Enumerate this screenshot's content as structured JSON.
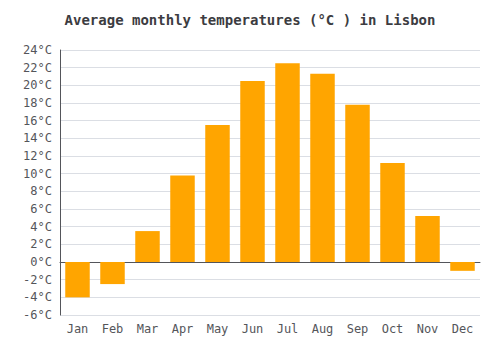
{
  "chart_data": {
    "type": "bar",
    "title": "Average monthly temperatures (°C ) in Lisbon",
    "categories": [
      "Jan",
      "Feb",
      "Mar",
      "Apr",
      "May",
      "Jun",
      "Jul",
      "Aug",
      "Sep",
      "Oct",
      "Nov",
      "Dec"
    ],
    "values": [
      -4.0,
      -2.5,
      3.5,
      9.8,
      15.5,
      20.5,
      22.5,
      21.3,
      17.8,
      11.2,
      5.2,
      -1.0
    ],
    "color": "#FFA500",
    "ylim": [
      -6,
      24
    ],
    "yticks": [
      {
        "value": -6,
        "label": "-6°C"
      },
      {
        "value": -4,
        "label": "-4°C"
      },
      {
        "value": -2,
        "label": "-2°C"
      },
      {
        "value": 0,
        "label": "0°C"
      },
      {
        "value": 2,
        "label": "2°C"
      },
      {
        "value": 4,
        "label": "4°C"
      },
      {
        "value": 6,
        "label": "6°C"
      },
      {
        "value": 8,
        "label": "8°C"
      },
      {
        "value": 10,
        "label": "10°C"
      },
      {
        "value": 12,
        "label": "12°C"
      },
      {
        "value": 14,
        "label": "14°C"
      },
      {
        "value": 16,
        "label": "16°C"
      },
      {
        "value": 18,
        "label": "18°C"
      },
      {
        "value": 20,
        "label": "20°C"
      },
      {
        "value": 22,
        "label": "22°C"
      },
      {
        "value": 24,
        "label": "24°C"
      }
    ],
    "grid": true
  }
}
